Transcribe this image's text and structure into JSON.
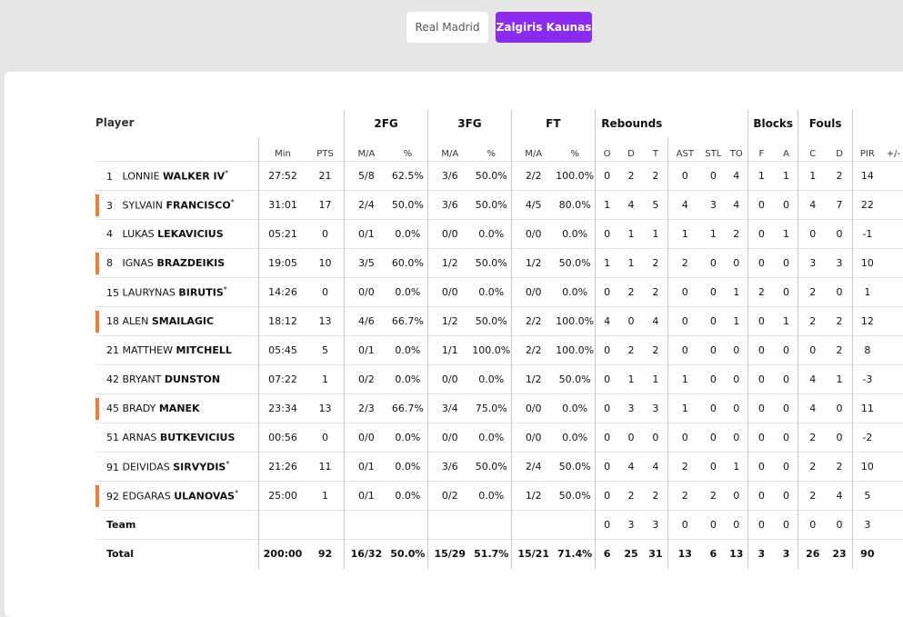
{
  "tabs": [
    {
      "label": "Real Madrid",
      "active": false
    },
    {
      "label": "Zalgiris Kaunas",
      "active": true
    }
  ],
  "header": {
    "player_label": "Player",
    "groups": {
      "fg2": "2FG",
      "fg3": "3FG",
      "ft": "FT",
      "rebounds": "Rebounds",
      "blocks": "Blocks",
      "fouls": "Fouls"
    },
    "cols": {
      "min": "Min",
      "pts": "PTS",
      "ma": "M/A",
      "pct": "%",
      "o": "O",
      "d": "D",
      "t": "T",
      "ast": "AST",
      "stl": "STL",
      "to": "TO",
      "f": "F",
      "a": "A",
      "c": "C",
      "fd": "D",
      "pir": "PIR",
      "pm": "+/-"
    }
  },
  "players": [
    {
      "num": "1",
      "first": "LONNIE",
      "last": "WALKER IV",
      "starter": true,
      "marker": false,
      "min": "27:52",
      "pts": "21",
      "fg2": "5/8",
      "fg2p": "62.5%",
      "fg3": "3/6",
      "fg3p": "50.0%",
      "ft": "2/2",
      "ftp": "100.0%",
      "o": "0",
      "d": "2",
      "t": "2",
      "ast": "0",
      "stl": "0",
      "to": "4",
      "bf": "1",
      "ba": "1",
      "fc": "1",
      "fd": "2",
      "pir": "14",
      "pm": ""
    },
    {
      "num": "3",
      "first": "SYLVAIN",
      "last": "FRANCISCO",
      "starter": true,
      "marker": true,
      "min": "31:01",
      "pts": "17",
      "fg2": "2/4",
      "fg2p": "50.0%",
      "fg3": "3/6",
      "fg3p": "50.0%",
      "ft": "4/5",
      "ftp": "80.0%",
      "o": "1",
      "d": "4",
      "t": "5",
      "ast": "4",
      "stl": "3",
      "to": "4",
      "bf": "0",
      "ba": "0",
      "fc": "4",
      "fd": "7",
      "pir": "22",
      "pm": ""
    },
    {
      "num": "4",
      "first": "LUKAS",
      "last": "LEKAVICIUS",
      "starter": false,
      "marker": false,
      "min": "05:21",
      "pts": "0",
      "fg2": "0/1",
      "fg2p": "0.0%",
      "fg3": "0/0",
      "fg3p": "0.0%",
      "ft": "0/0",
      "ftp": "0.0%",
      "o": "0",
      "d": "1",
      "t": "1",
      "ast": "1",
      "stl": "1",
      "to": "2",
      "bf": "0",
      "ba": "1",
      "fc": "0",
      "fd": "0",
      "pir": "-1",
      "pm": ""
    },
    {
      "num": "8",
      "first": "IGNAS",
      "last": "BRAZDEIKIS",
      "starter": false,
      "marker": true,
      "min": "19:05",
      "pts": "10",
      "fg2": "3/5",
      "fg2p": "60.0%",
      "fg3": "1/2",
      "fg3p": "50.0%",
      "ft": "1/2",
      "ftp": "50.0%",
      "o": "1",
      "d": "1",
      "t": "2",
      "ast": "2",
      "stl": "0",
      "to": "0",
      "bf": "0",
      "ba": "0",
      "fc": "3",
      "fd": "3",
      "pir": "10",
      "pm": ""
    },
    {
      "num": "15",
      "first": "LAURYNAS",
      "last": "BIRUTIS",
      "starter": true,
      "marker": false,
      "min": "14:26",
      "pts": "0",
      "fg2": "0/0",
      "fg2p": "0.0%",
      "fg3": "0/0",
      "fg3p": "0.0%",
      "ft": "0/0",
      "ftp": "0.0%",
      "o": "0",
      "d": "2",
      "t": "2",
      "ast": "0",
      "stl": "0",
      "to": "1",
      "bf": "2",
      "ba": "0",
      "fc": "2",
      "fd": "0",
      "pir": "1",
      "pm": ""
    },
    {
      "num": "18",
      "first": "ALEN",
      "last": "SMAILAGIC",
      "starter": false,
      "marker": true,
      "min": "18:12",
      "pts": "13",
      "fg2": "4/6",
      "fg2p": "66.7%",
      "fg3": "1/2",
      "fg3p": "50.0%",
      "ft": "2/2",
      "ftp": "100.0%",
      "o": "4",
      "d": "0",
      "t": "4",
      "ast": "0",
      "stl": "0",
      "to": "1",
      "bf": "0",
      "ba": "1",
      "fc": "2",
      "fd": "2",
      "pir": "12",
      "pm": ""
    },
    {
      "num": "21",
      "first": "MATTHEW",
      "last": "MITCHELL",
      "starter": false,
      "marker": false,
      "min": "05:45",
      "pts": "5",
      "fg2": "0/1",
      "fg2p": "0.0%",
      "fg3": "1/1",
      "fg3p": "100.0%",
      "ft": "2/2",
      "ftp": "100.0%",
      "o": "0",
      "d": "2",
      "t": "2",
      "ast": "0",
      "stl": "0",
      "to": "0",
      "bf": "0",
      "ba": "0",
      "fc": "0",
      "fd": "2",
      "pir": "8",
      "pm": ""
    },
    {
      "num": "42",
      "first": "BRYANT",
      "last": "DUNSTON",
      "starter": false,
      "marker": false,
      "min": "07:22",
      "pts": "1",
      "fg2": "0/2",
      "fg2p": "0.0%",
      "fg3": "0/0",
      "fg3p": "0.0%",
      "ft": "1/2",
      "ftp": "50.0%",
      "o": "0",
      "d": "1",
      "t": "1",
      "ast": "1",
      "stl": "0",
      "to": "0",
      "bf": "0",
      "ba": "0",
      "fc": "4",
      "fd": "1",
      "pir": "-3",
      "pm": ""
    },
    {
      "num": "45",
      "first": "BRADY",
      "last": "MANEK",
      "starter": false,
      "marker": true,
      "min": "23:34",
      "pts": "13",
      "fg2": "2/3",
      "fg2p": "66.7%",
      "fg3": "3/4",
      "fg3p": "75.0%",
      "ft": "0/0",
      "ftp": "0.0%",
      "o": "0",
      "d": "3",
      "t": "3",
      "ast": "1",
      "stl": "0",
      "to": "0",
      "bf": "0",
      "ba": "0",
      "fc": "4",
      "fd": "0",
      "pir": "11",
      "pm": ""
    },
    {
      "num": "51",
      "first": "ARNAS",
      "last": "BUTKEVICIUS",
      "starter": false,
      "marker": false,
      "min": "00:56",
      "pts": "0",
      "fg2": "0/0",
      "fg2p": "0.0%",
      "fg3": "0/0",
      "fg3p": "0.0%",
      "ft": "0/0",
      "ftp": "0.0%",
      "o": "0",
      "d": "0",
      "t": "0",
      "ast": "0",
      "stl": "0",
      "to": "0",
      "bf": "0",
      "ba": "0",
      "fc": "2",
      "fd": "0",
      "pir": "-2",
      "pm": ""
    },
    {
      "num": "91",
      "first": "DEIVIDAS",
      "last": "SIRVYDIS",
      "starter": true,
      "marker": false,
      "min": "21:26",
      "pts": "11",
      "fg2": "0/1",
      "fg2p": "0.0%",
      "fg3": "3/6",
      "fg3p": "50.0%",
      "ft": "2/4",
      "ftp": "50.0%",
      "o": "0",
      "d": "4",
      "t": "4",
      "ast": "2",
      "stl": "0",
      "to": "1",
      "bf": "0",
      "ba": "0",
      "fc": "2",
      "fd": "2",
      "pir": "10",
      "pm": ""
    },
    {
      "num": "92",
      "first": "EDGARAS",
      "last": "ULANOVAS",
      "starter": true,
      "marker": true,
      "min": "25:00",
      "pts": "1",
      "fg2": "0/1",
      "fg2p": "0.0%",
      "fg3": "0/2",
      "fg3p": "0.0%",
      "ft": "1/2",
      "ftp": "50.0%",
      "o": "0",
      "d": "2",
      "t": "2",
      "ast": "2",
      "stl": "2",
      "to": "0",
      "bf": "0",
      "ba": "0",
      "fc": "2",
      "fd": "4",
      "pir": "5",
      "pm": ""
    }
  ],
  "team": {
    "label": "Team",
    "min": "",
    "pts": "",
    "fg2": "",
    "fg2p": "",
    "fg3": "",
    "fg3p": "",
    "ft": "",
    "ftp": "",
    "o": "0",
    "d": "3",
    "t": "3",
    "ast": "0",
    "stl": "0",
    "to": "0",
    "bf": "0",
    "ba": "0",
    "fc": "0",
    "fd": "0",
    "pir": "3",
    "pm": ""
  },
  "total": {
    "label": "Total",
    "min": "200:00",
    "pts": "92",
    "fg2": "16/32",
    "fg2p": "50.0%",
    "fg3": "15/29",
    "fg3p": "51.7%",
    "ft": "15/21",
    "ftp": "71.4%",
    "o": "6",
    "d": "25",
    "t": "31",
    "ast": "13",
    "stl": "6",
    "to": "13",
    "bf": "3",
    "ba": "3",
    "fc": "26",
    "fd": "23",
    "pir": "90",
    "pm": ""
  },
  "star_symbol": "*"
}
